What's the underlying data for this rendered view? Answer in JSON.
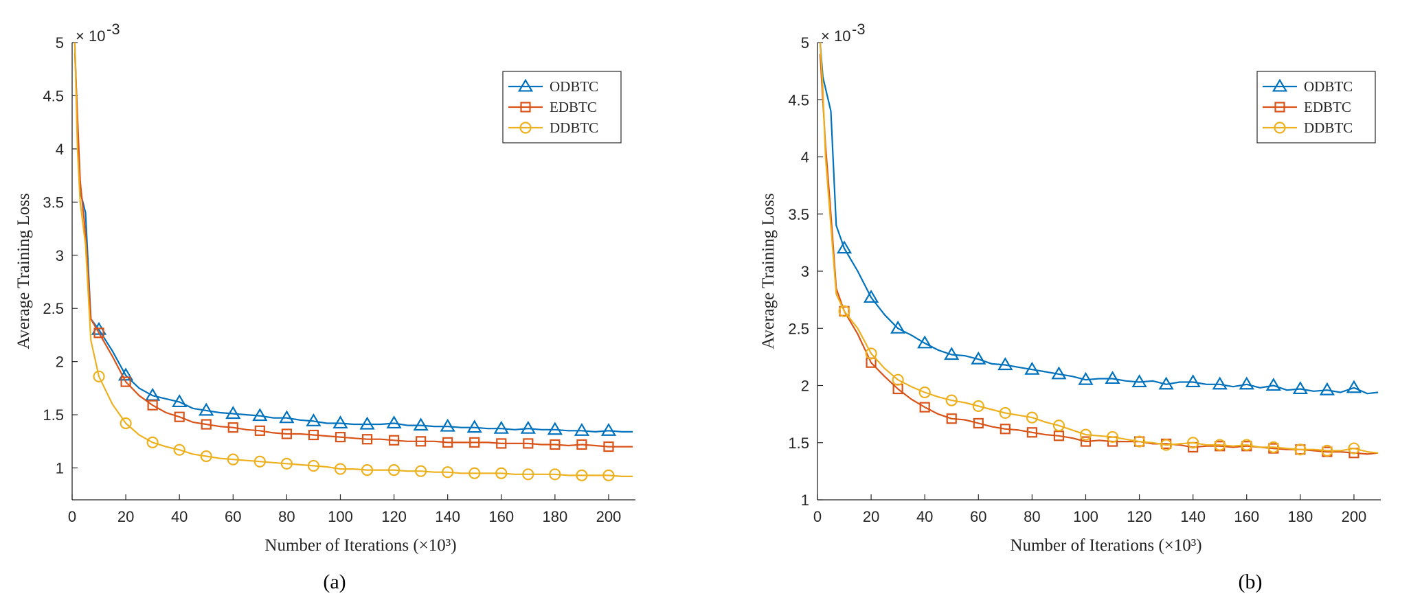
{
  "chart_data": [
    {
      "type": "line",
      "panel_label": "(a)",
      "xlabel": "Number of Iterations (×10³)",
      "ylabel": "Average Training Loss",
      "y_exponent": "× 10^-3",
      "xlim": [
        0,
        210
      ],
      "ylim": [
        0.7,
        5
      ],
      "xticks": [
        0,
        20,
        40,
        60,
        80,
        100,
        120,
        140,
        160,
        180,
        200
      ],
      "yticks": [
        1,
        1.5,
        2,
        2.5,
        3,
        3.5,
        4,
        4.5,
        5
      ],
      "legend_position": "top-right",
      "grid": false,
      "x": [
        1,
        2,
        3,
        5,
        7,
        10,
        15,
        20,
        25,
        30,
        35,
        40,
        45,
        50,
        55,
        60,
        65,
        70,
        75,
        80,
        85,
        90,
        95,
        100,
        105,
        110,
        115,
        120,
        125,
        130,
        135,
        140,
        145,
        150,
        155,
        160,
        165,
        170,
        175,
        180,
        185,
        190,
        195,
        200,
        205,
        209
      ],
      "series": [
        {
          "name": "ODBTC",
          "color": "#0072BD",
          "marker": "triangle",
          "values": [
            5.0,
            4.2,
            3.6,
            3.4,
            2.4,
            2.3,
            2.1,
            1.87,
            1.75,
            1.68,
            1.65,
            1.62,
            1.56,
            1.54,
            1.52,
            1.51,
            1.5,
            1.49,
            1.47,
            1.47,
            1.45,
            1.44,
            1.42,
            1.42,
            1.41,
            1.41,
            1.41,
            1.42,
            1.4,
            1.4,
            1.39,
            1.39,
            1.38,
            1.38,
            1.37,
            1.37,
            1.36,
            1.37,
            1.36,
            1.36,
            1.35,
            1.35,
            1.34,
            1.35,
            1.34,
            1.34
          ]
        },
        {
          "name": "EDBTC",
          "color": "#D95319",
          "marker": "square",
          "values": [
            4.9,
            4.3,
            3.7,
            3.2,
            2.4,
            2.27,
            2.05,
            1.81,
            1.68,
            1.59,
            1.52,
            1.48,
            1.43,
            1.41,
            1.39,
            1.38,
            1.36,
            1.35,
            1.33,
            1.32,
            1.32,
            1.31,
            1.3,
            1.29,
            1.28,
            1.27,
            1.27,
            1.26,
            1.25,
            1.25,
            1.25,
            1.24,
            1.24,
            1.24,
            1.24,
            1.23,
            1.23,
            1.23,
            1.22,
            1.22,
            1.21,
            1.22,
            1.21,
            1.2,
            1.2,
            1.2
          ]
        },
        {
          "name": "DDBTC",
          "color": "#EDB120",
          "marker": "circle",
          "values": [
            5.0,
            4.0,
            3.5,
            3.1,
            2.2,
            1.86,
            1.6,
            1.42,
            1.31,
            1.24,
            1.2,
            1.17,
            1.13,
            1.11,
            1.09,
            1.08,
            1.07,
            1.06,
            1.05,
            1.04,
            1.03,
            1.02,
            1.01,
            0.99,
            0.99,
            0.98,
            0.98,
            0.98,
            0.97,
            0.97,
            0.96,
            0.96,
            0.95,
            0.95,
            0.95,
            0.95,
            0.94,
            0.94,
            0.94,
            0.94,
            0.93,
            0.93,
            0.93,
            0.93,
            0.92,
            0.92
          ]
        }
      ]
    },
    {
      "type": "line",
      "panel_label": "(b)",
      "xlabel": "Number of Iterations (×10³)",
      "ylabel": "Average Training Loss",
      "y_exponent": "× 10^-3",
      "xlim": [
        0,
        210
      ],
      "ylim": [
        1,
        5
      ],
      "xticks": [
        0,
        20,
        40,
        60,
        80,
        100,
        120,
        140,
        160,
        180,
        200
      ],
      "yticks": [
        1,
        1.5,
        2,
        2.5,
        3,
        3.5,
        4,
        4.5,
        5
      ],
      "legend_position": "top-right",
      "grid": false,
      "x": [
        1,
        2,
        3,
        5,
        7,
        10,
        15,
        20,
        25,
        30,
        35,
        40,
        45,
        50,
        55,
        60,
        65,
        70,
        75,
        80,
        85,
        90,
        95,
        100,
        105,
        110,
        115,
        120,
        125,
        130,
        135,
        140,
        145,
        150,
        155,
        160,
        165,
        170,
        175,
        180,
        185,
        190,
        195,
        200,
        205,
        209
      ],
      "series": [
        {
          "name": "ODBTC",
          "color": "#0072BD",
          "marker": "triangle",
          "values": [
            5.0,
            4.7,
            4.6,
            4.4,
            3.4,
            3.2,
            3.0,
            2.77,
            2.62,
            2.5,
            2.44,
            2.37,
            2.31,
            2.27,
            2.26,
            2.23,
            2.19,
            2.18,
            2.16,
            2.14,
            2.12,
            2.1,
            2.08,
            2.05,
            2.06,
            2.06,
            2.04,
            2.03,
            2.04,
            2.01,
            2.03,
            2.03,
            2.01,
            2.01,
            1.99,
            2.01,
            1.98,
            2.0,
            1.96,
            1.97,
            1.95,
            1.96,
            1.94,
            1.98,
            1.93,
            1.94
          ]
        },
        {
          "name": "EDBTC",
          "color": "#D95319",
          "marker": "square",
          "values": [
            4.9,
            4.5,
            4.1,
            3.5,
            2.85,
            2.65,
            2.45,
            2.2,
            2.08,
            1.97,
            1.88,
            1.81,
            1.75,
            1.71,
            1.7,
            1.67,
            1.64,
            1.62,
            1.61,
            1.59,
            1.57,
            1.56,
            1.54,
            1.51,
            1.52,
            1.51,
            1.51,
            1.51,
            1.49,
            1.49,
            1.48,
            1.46,
            1.47,
            1.47,
            1.46,
            1.47,
            1.46,
            1.45,
            1.44,
            1.44,
            1.43,
            1.42,
            1.42,
            1.41,
            1.4,
            1.41
          ]
        },
        {
          "name": "DDBTC",
          "color": "#EDB120",
          "marker": "circle",
          "values": [
            5.0,
            4.6,
            4.0,
            3.4,
            2.8,
            2.65,
            2.5,
            2.28,
            2.15,
            2.05,
            1.99,
            1.94,
            1.9,
            1.87,
            1.85,
            1.82,
            1.79,
            1.76,
            1.74,
            1.72,
            1.68,
            1.65,
            1.61,
            1.57,
            1.56,
            1.55,
            1.53,
            1.51,
            1.5,
            1.48,
            1.49,
            1.5,
            1.48,
            1.48,
            1.47,
            1.48,
            1.46,
            1.46,
            1.45,
            1.44,
            1.44,
            1.43,
            1.43,
            1.45,
            1.42,
            1.41
          ]
        }
      ]
    }
  ]
}
